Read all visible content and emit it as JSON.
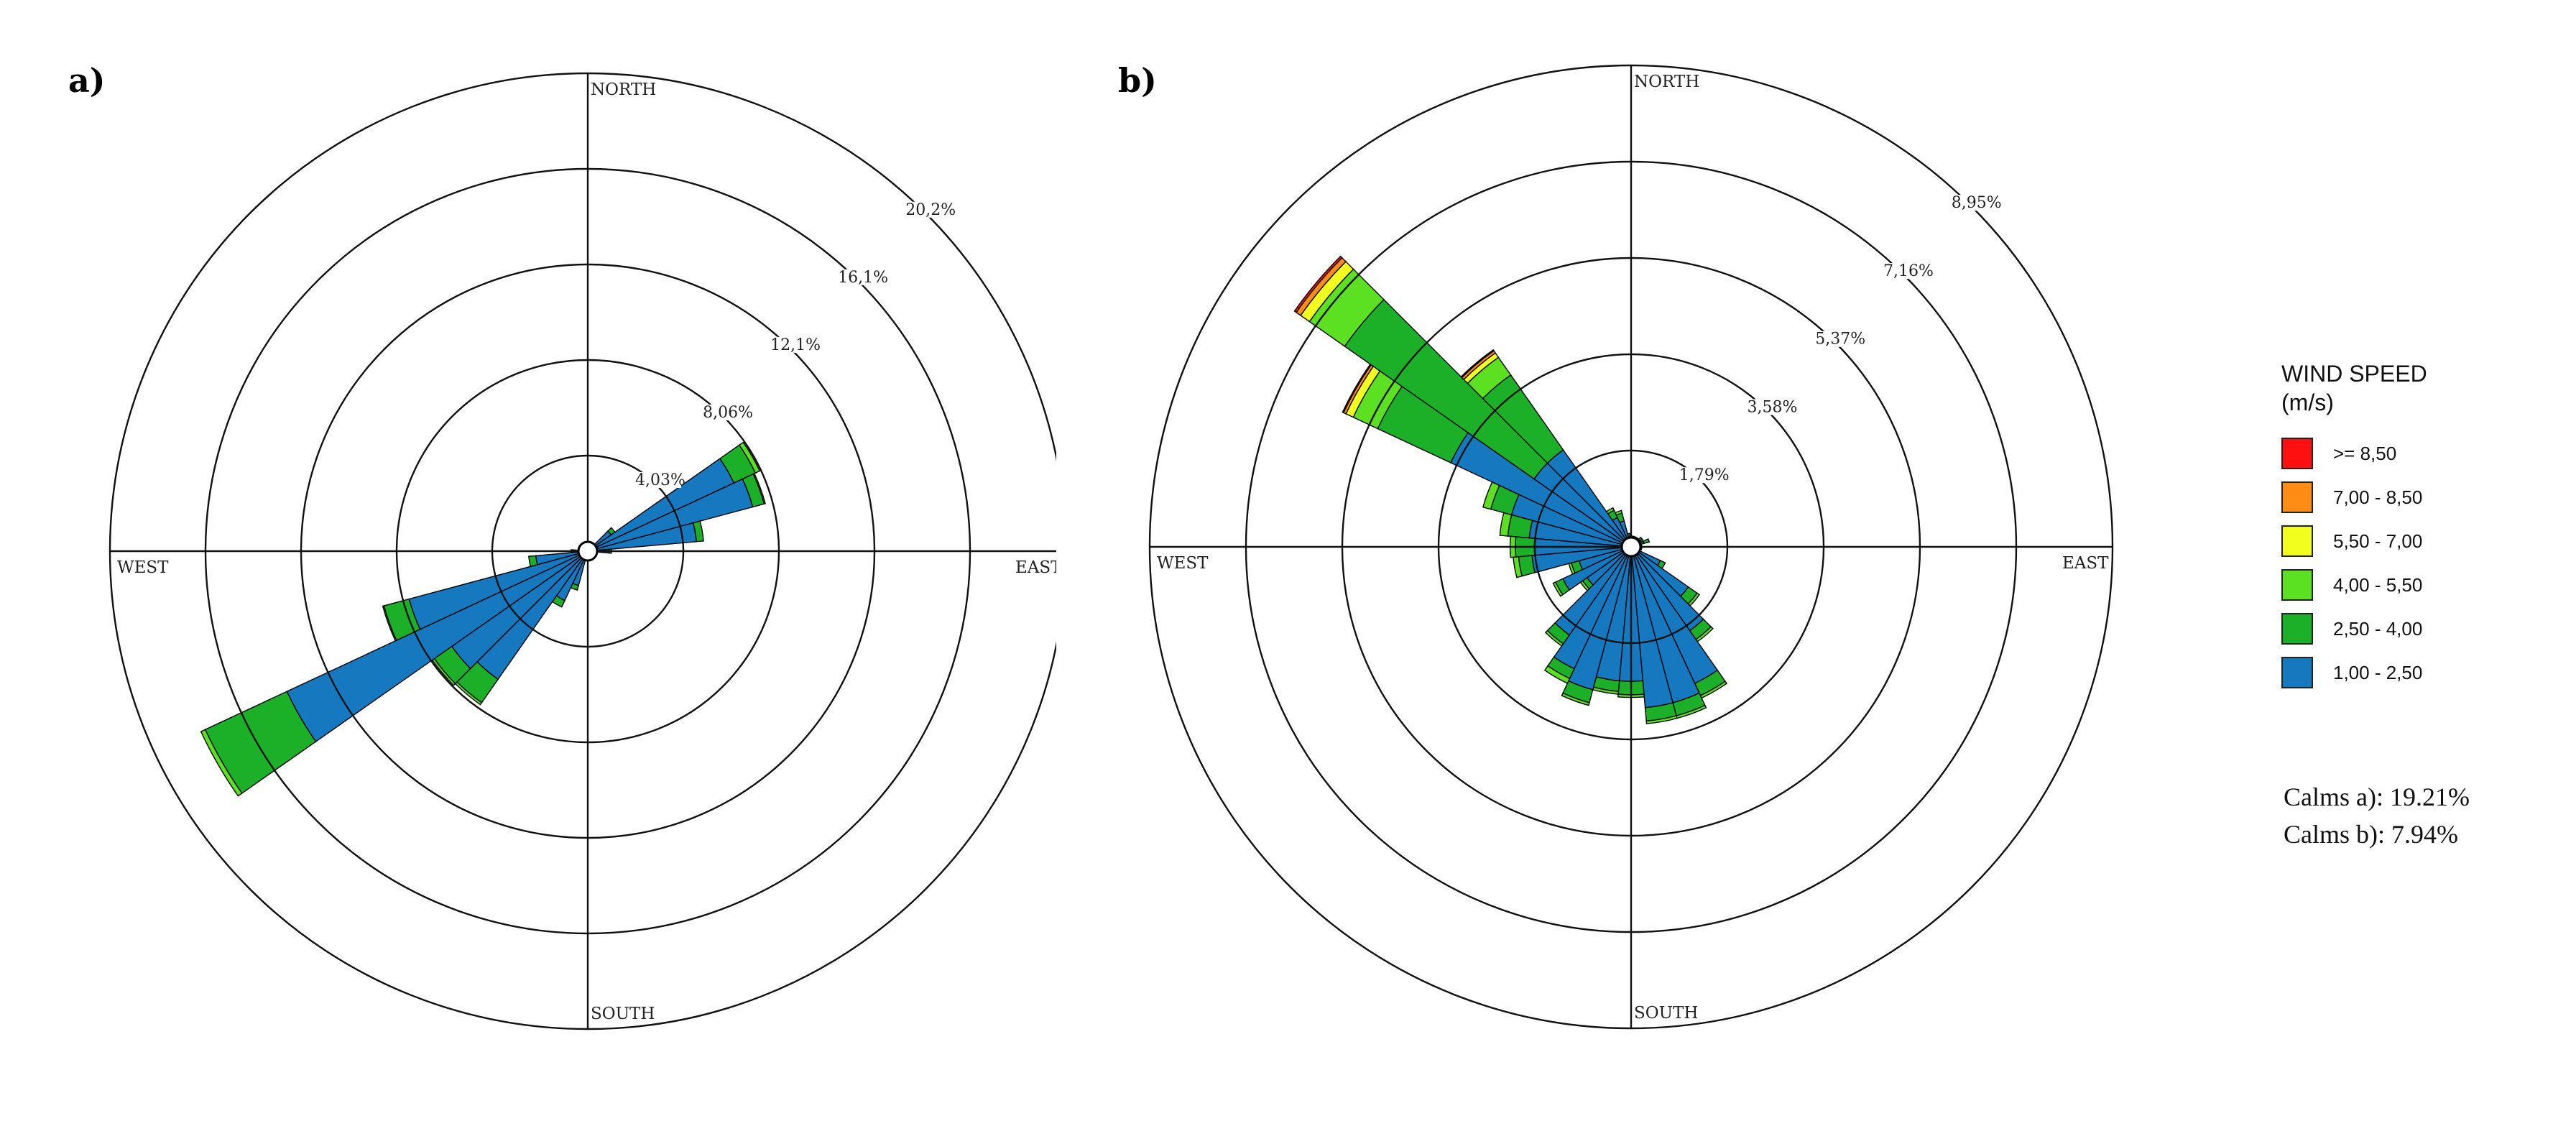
{
  "chart_data": [
    {
      "type": "wind-rose",
      "panel_label": "a)",
      "direction_labels": {
        "north": "NORTH",
        "south": "SOUTH",
        "east": "EAST",
        "west": "WEST"
      },
      "ring_values": [
        4.03,
        8.06,
        12.1,
        16.1,
        20.2
      ],
      "ring_labels": [
        "4,03%",
        "8,06%",
        "12,1%",
        "16,1%",
        "20,2%"
      ],
      "sectors": 36,
      "speed_bins": [
        "1,00 - 2,50",
        "2,50 - 4,00",
        "4,00 - 5,50",
        "5,50 - 7,00",
        "7,00 - 8,50",
        ">= 8,50"
      ],
      "petals": [
        {
          "dir": 10,
          "values": [
            0.25,
            0.05,
            0,
            0,
            0,
            0
          ]
        },
        {
          "dir": 20,
          "values": [
            0.3,
            0.05,
            0,
            0,
            0,
            0
          ]
        },
        {
          "dir": 30,
          "values": [
            0.3,
            0.05,
            0,
            0,
            0,
            0
          ]
        },
        {
          "dir": 40,
          "values": [
            0.3,
            0.05,
            0,
            0,
            0,
            0
          ]
        },
        {
          "dir": 50,
          "values": [
            1.2,
            0.2,
            0,
            0,
            0,
            0
          ]
        },
        {
          "dir": 60,
          "values": [
            6.8,
            1.0,
            0.2,
            0,
            0,
            0
          ]
        },
        {
          "dir": 70,
          "values": [
            7.2,
            0.5,
            0.05,
            0,
            0,
            0
          ]
        },
        {
          "dir": 80,
          "values": [
            4.6,
            0.3,
            0,
            0,
            0,
            0
          ]
        },
        {
          "dir": 90,
          "values": [
            0.9,
            0.1,
            0,
            0,
            0,
            0
          ]
        },
        {
          "dir": 100,
          "values": [
            0.3,
            0.05,
            0,
            0,
            0,
            0
          ]
        },
        {
          "dir": 110,
          "values": [
            0.2,
            0.05,
            0,
            0,
            0,
            0
          ]
        },
        {
          "dir": 200,
          "values": [
            1.5,
            0.2,
            0,
            0,
            0,
            0
          ]
        },
        {
          "dir": 210,
          "values": [
            2.3,
            0.3,
            0,
            0,
            0,
            0
          ]
        },
        {
          "dir": 220,
          "values": [
            6.6,
            1.2,
            0.1,
            0,
            0,
            0
          ]
        },
        {
          "dir": 230,
          "values": [
            7.0,
            0.9,
            0.1,
            0,
            0,
            0
          ]
        },
        {
          "dir": 240,
          "values": [
            14.0,
            3.8,
            0.2,
            0,
            0,
            0
          ]
        },
        {
          "dir": 250,
          "values": [
            7.8,
            1.1,
            0.05,
            0,
            0,
            0
          ]
        },
        {
          "dir": 260,
          "values": [
            2.2,
            0.3,
            0,
            0,
            0,
            0
          ]
        },
        {
          "dir": 270,
          "values": [
            0.6,
            0.1,
            0,
            0,
            0,
            0
          ]
        }
      ]
    },
    {
      "type": "wind-rose",
      "panel_label": "b)",
      "direction_labels": {
        "north": "NORTH",
        "south": "SOUTH",
        "east": "EAST",
        "west": "WEST"
      },
      "ring_values": [
        1.79,
        3.58,
        5.37,
        7.16,
        8.95
      ],
      "ring_labels": [
        "1,79%",
        "3,58%",
        "5,37%",
        "7,16%",
        "8,95%"
      ],
      "sectors": 36,
      "speed_bins": [
        "1,00 - 2,50",
        "2,50 - 4,00",
        "4,00 - 5,50",
        "5,50 - 7,00",
        "7,00 - 8,50",
        ">= 8,50"
      ],
      "petals": [
        {
          "dir": 10,
          "values": [
            0.15,
            0.05,
            0,
            0,
            0,
            0
          ]
        },
        {
          "dir": 20,
          "values": [
            0.15,
            0.05,
            0,
            0,
            0,
            0
          ]
        },
        {
          "dir": 30,
          "values": [
            0.15,
            0.05,
            0,
            0,
            0,
            0
          ]
        },
        {
          "dir": 40,
          "values": [
            0.15,
            0.05,
            0,
            0,
            0,
            0
          ]
        },
        {
          "dir": 50,
          "values": [
            0.2,
            0.05,
            0,
            0,
            0,
            0
          ]
        },
        {
          "dir": 60,
          "values": [
            0.2,
            0.05,
            0,
            0,
            0,
            0
          ]
        },
        {
          "dir": 70,
          "values": [
            0.25,
            0.1,
            0,
            0,
            0,
            0
          ]
        },
        {
          "dir": 80,
          "values": [
            0.15,
            0.05,
            0,
            0,
            0,
            0
          ]
        },
        {
          "dir": 100,
          "values": [
            0.15,
            0.05,
            0,
            0,
            0,
            0
          ]
        },
        {
          "dir": 120,
          "values": [
            0.6,
            0.1,
            0,
            0,
            0,
            0
          ]
        },
        {
          "dir": 130,
          "values": [
            1.3,
            0.2,
            0.05,
            0,
            0,
            0
          ]
        },
        {
          "dir": 140,
          "values": [
            1.9,
            0.2,
            0.05,
            0,
            0,
            0
          ]
        },
        {
          "dir": 150,
          "values": [
            2.8,
            0.25,
            0.05,
            0,
            0,
            0
          ]
        },
        {
          "dir": 160,
          "values": [
            3.0,
            0.25,
            0.05,
            0,
            0,
            0
          ]
        },
        {
          "dir": 170,
          "values": [
            3.0,
            0.25,
            0.05,
            0,
            0,
            0
          ]
        },
        {
          "dir": 180,
          "values": [
            2.5,
            0.25,
            0.05,
            0,
            0,
            0
          ]
        },
        {
          "dir": 190,
          "values": [
            2.5,
            0.2,
            0.05,
            0,
            0,
            0
          ]
        },
        {
          "dir": 200,
          "values": [
            2.75,
            0.25,
            0.05,
            0,
            0,
            0
          ]
        },
        {
          "dir": 210,
          "values": [
            2.5,
            0.2,
            0.1,
            0,
            0,
            0
          ]
        },
        {
          "dir": 220,
          "values": [
            2.0,
            0.2,
            0.05,
            0,
            0,
            0
          ]
        },
        {
          "dir": 230,
          "values": [
            1.0,
            0.1,
            0.05,
            0,
            0,
            0
          ]
        },
        {
          "dir": 240,
          "values": [
            1.4,
            0.15,
            0.05,
            0,
            0,
            0
          ]
        },
        {
          "dir": 250,
          "values": [
            1.0,
            0.15,
            0.05,
            0,
            0,
            0
          ]
        },
        {
          "dir": 260,
          "values": [
            1.85,
            0.25,
            0.1,
            0,
            0,
            0
          ]
        },
        {
          "dir": 270,
          "values": [
            1.8,
            0.35,
            0.1,
            0,
            0,
            0
          ]
        },
        {
          "dir": 280,
          "values": [
            1.9,
            0.4,
            0.15,
            0,
            0,
            0
          ]
        },
        {
          "dir": 290,
          "values": [
            2.3,
            0.4,
            0.15,
            0,
            0,
            0
          ]
        },
        {
          "dir": 300,
          "values": [
            3.7,
            1.5,
            0.5,
            0.15,
            0.05,
            0.02
          ]
        },
        {
          "dir": 310,
          "values": [
            2.2,
            4.3,
            0.8,
            0.2,
            0.1,
            0.04
          ]
        },
        {
          "dir": 320,
          "values": [
            2.2,
            1.7,
            0.4,
            0.1,
            0.05,
            0.02
          ]
        },
        {
          "dir": 330,
          "values": [
            0.6,
            0.15,
            0.05,
            0,
            0,
            0
          ]
        },
        {
          "dir": 340,
          "values": [
            0.5,
            0.15,
            0.05,
            0,
            0,
            0
          ]
        },
        {
          "dir": 350,
          "values": [
            0.2,
            0.05,
            0,
            0,
            0,
            0
          ]
        }
      ]
    }
  ],
  "legend": {
    "title_line1": "WIND SPEED",
    "title_line2": "(m/s)",
    "items": [
      {
        "label": ">= 8,50",
        "color": "#ff1010"
      },
      {
        "label": "7,00 - 8,50",
        "color": "#ff8c14"
      },
      {
        "label": "5,50 - 7,00",
        "color": "#f2ff1e"
      },
      {
        "label": "4,00 - 5,50",
        "color": "#5ce022"
      },
      {
        "label": "2,50 - 4,00",
        "color": "#1cb028"
      },
      {
        "label": "1,00 - 2,50",
        "color": "#1678bf"
      }
    ]
  },
  "calms": {
    "a": "Calms a): 19.21%",
    "b": "Calms b): 7.94%"
  }
}
